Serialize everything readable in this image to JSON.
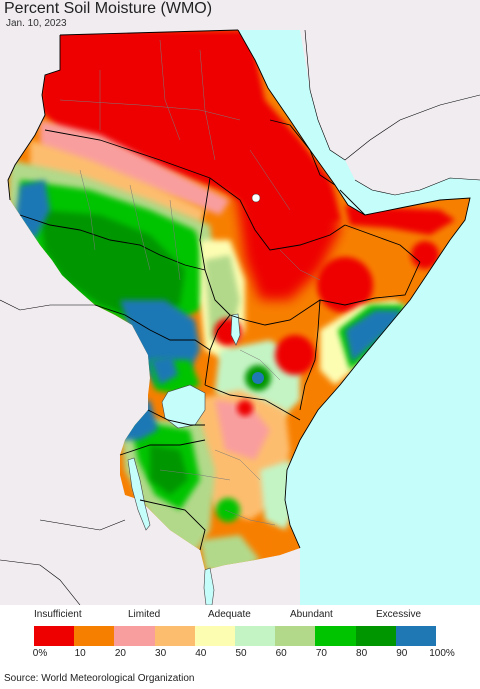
{
  "title": "Percent Soil Moisture (WMO)",
  "date": "Jan. 10, 2023",
  "source": "Source: World Meteorological Organization",
  "legend": {
    "categories": [
      "Insufficient",
      "Limited",
      "Adequate",
      "Abundant",
      "Excessive"
    ],
    "ticks": [
      "0%",
      "10",
      "20",
      "30",
      "40",
      "50",
      "60",
      "70",
      "80",
      "90",
      "100%"
    ],
    "colors": [
      "#ee0000",
      "#f77f00",
      "#f99e9e",
      "#fdbd6e",
      "#fdfdb2",
      "#c4f4c4",
      "#b2d98a",
      "#00c400",
      "#009600",
      "#1f78b4"
    ]
  },
  "colors": {
    "water": "#c5fdfb",
    "outside": "#f0ecf0",
    "border": "#7a7a7a",
    "country_border": "#000000"
  }
}
